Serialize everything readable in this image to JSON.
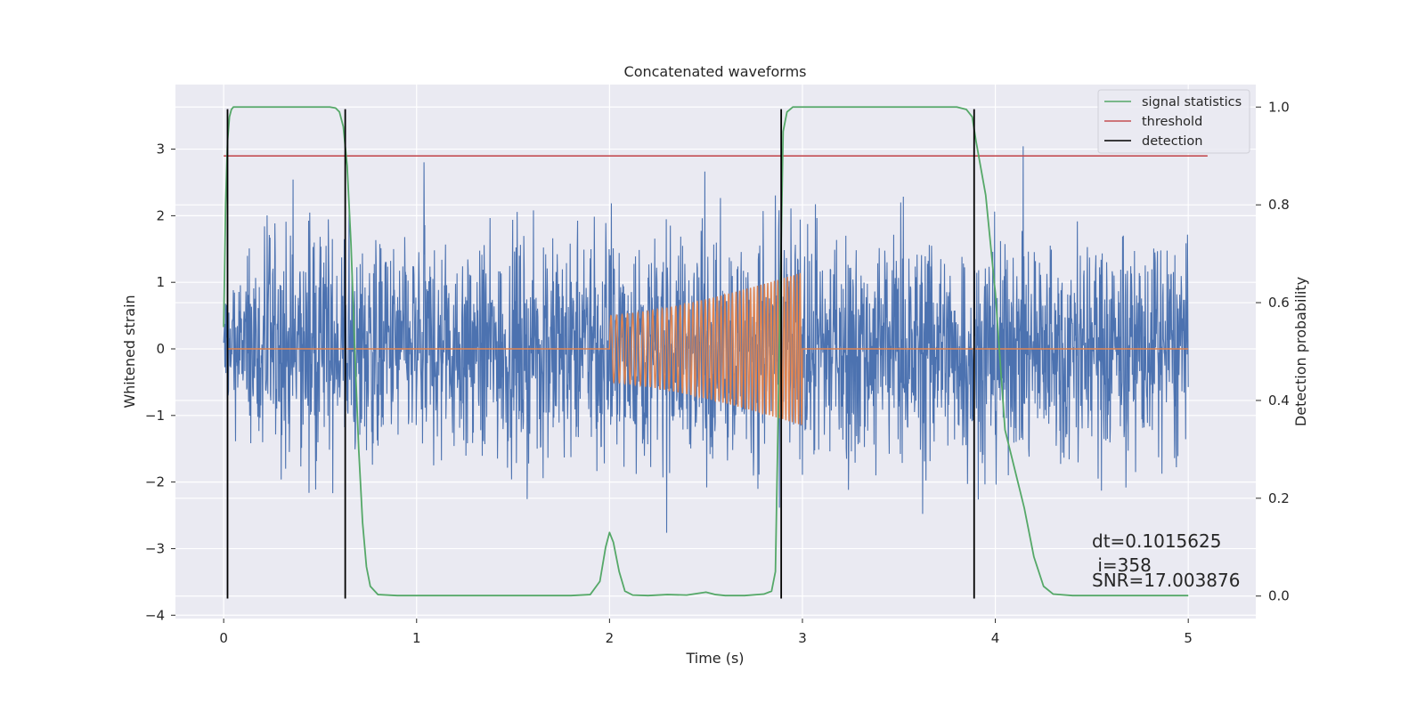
{
  "chart_data": {
    "type": "line",
    "title": "Concatenated waveforms",
    "xlabel": "Time (s)",
    "ylabel_left": "Whitened strain",
    "ylabel_right": "Detection probability",
    "xlim": [
      -0.25,
      5.35
    ],
    "ylim_left": [
      -4.05,
      3.97
    ],
    "ylim_right": [
      -0.046,
      1.046
    ],
    "x_ticks": [
      0,
      1,
      2,
      3,
      4,
      5
    ],
    "y_left_ticks": [
      -4,
      -3,
      -2,
      -1,
      0,
      1,
      2,
      3
    ],
    "y_right_ticks": [
      0.0,
      0.2,
      0.4,
      0.6,
      0.8,
      1.0
    ],
    "grid": true,
    "legend_position": "top-right",
    "legend": [
      {
        "label": "signal statistics",
        "color": "#55a868"
      },
      {
        "label": "threshold",
        "color": "#c44e52"
      },
      {
        "label": "detection",
        "color": "#000000"
      }
    ],
    "colors": {
      "background": "#eaeaf2",
      "strain": "#4c72b0",
      "template": "#dd8452",
      "statistics": "#55a868",
      "threshold": "#c44e52",
      "detection": "#000000",
      "grid": "#ffffff"
    },
    "series": [
      {
        "name": "signal statistics",
        "axis": "right",
        "x": [
          0.0,
          0.01,
          0.02,
          0.03,
          0.04,
          0.05,
          0.08,
          0.12,
          0.2,
          0.3,
          0.4,
          0.5,
          0.55,
          0.58,
          0.6,
          0.62,
          0.64,
          0.66,
          0.68,
          0.7,
          0.72,
          0.74,
          0.76,
          0.8,
          0.9,
          1.0,
          1.2,
          1.5,
          1.8,
          1.9,
          1.95,
          1.98,
          2.0,
          2.02,
          2.05,
          2.08,
          2.12,
          2.2,
          2.3,
          2.4,
          2.5,
          2.55,
          2.6,
          2.7,
          2.8,
          2.84,
          2.86,
          2.88,
          2.9,
          2.92,
          2.95,
          3.0,
          3.2,
          3.5,
          3.8,
          3.85,
          3.88,
          3.9,
          3.95,
          4.0,
          4.05,
          4.1,
          4.15,
          4.2,
          4.25,
          4.3,
          4.4,
          4.6,
          5.0
        ],
        "y": [
          0.55,
          0.8,
          0.93,
          0.98,
          0.995,
          1.0,
          1.0,
          1.0,
          1.0,
          1.0,
          1.0,
          1.0,
          1.0,
          0.998,
          0.99,
          0.96,
          0.88,
          0.72,
          0.5,
          0.3,
          0.15,
          0.06,
          0.02,
          0.003,
          0.001,
          0.001,
          0.001,
          0.001,
          0.001,
          0.003,
          0.03,
          0.1,
          0.13,
          0.11,
          0.05,
          0.01,
          0.002,
          0.001,
          0.003,
          0.002,
          0.008,
          0.003,
          0.001,
          0.001,
          0.004,
          0.01,
          0.05,
          0.5,
          0.95,
          0.99,
          1.0,
          1.0,
          1.0,
          1.0,
          1.0,
          0.995,
          0.98,
          0.93,
          0.82,
          0.62,
          0.34,
          0.26,
          0.18,
          0.08,
          0.02,
          0.004,
          0.001,
          0.001,
          0.001
        ]
      },
      {
        "name": "threshold",
        "axis": "right",
        "x": [
          0.0,
          5.1
        ],
        "y": [
          0.9,
          0.9
        ]
      }
    ],
    "strain_envelope": {
      "x": [
        0.0,
        0.2,
        0.6,
        1.0,
        1.5,
        1.8,
        2.0,
        2.5,
        2.9,
        3.0,
        3.5,
        4.0,
        4.5,
        5.0
      ],
      "upper": [
        1.5,
        2.5,
        2.5,
        2.3,
        2.4,
        2.3,
        2.4,
        2.5,
        2.6,
        2.6,
        2.5,
        2.5,
        2.4,
        2.4
      ],
      "lower": [
        -1.5,
        -2.5,
        -2.5,
        -2.3,
        -2.4,
        -2.3,
        -2.4,
        -2.5,
        -2.6,
        -2.6,
        -2.5,
        -2.5,
        -2.4,
        -2.4
      ]
    },
    "template_chirp": {
      "x_start": 2.0,
      "x_end": 3.0,
      "amp_start": 0.5,
      "amp_end": 1.15,
      "cycles": 48
    },
    "detections": [
      0.02,
      0.63,
      2.89,
      3.89
    ],
    "detection_range": [
      -3.75,
      3.6
    ],
    "annotations": [
      "dt=0.1015625",
      " i=358",
      "SNR=17.003876"
    ]
  }
}
